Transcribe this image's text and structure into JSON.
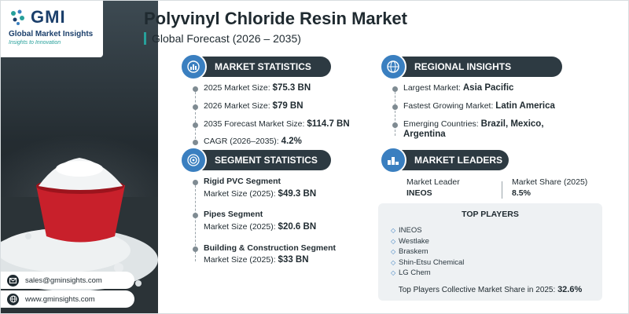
{
  "brand": {
    "logo_text": "GMI",
    "name": "Global Market Insights",
    "tagline": "Insights to Innovation"
  },
  "contact": {
    "email": "sales@gminsights.com",
    "website": "www.gminsights.com"
  },
  "header": {
    "title": "Polyvinyl Chloride Resin Market",
    "subtitle": "Global Forecast (2026 – 2035)"
  },
  "market_statistics": {
    "heading": "MARKET STATISTICS",
    "items": [
      {
        "label": "2025 Market Size: ",
        "value": "$75.3 BN"
      },
      {
        "label": "2026 Market Size: ",
        "value": "$79 BN"
      },
      {
        "label": "2035 Forecast Market Size: ",
        "value": "$114.7 BN"
      },
      {
        "label": "CAGR (2026–2035): ",
        "value": "4.2%"
      }
    ]
  },
  "regional_insights": {
    "heading": "REGIONAL INSIGHTS",
    "items": [
      {
        "label": "Largest Market: ",
        "value": "Asia Pacific"
      },
      {
        "label": "Fastest Growing Market: ",
        "value": "Latin America"
      },
      {
        "label": "Emerging Countries: ",
        "value": "Brazil, Mexico,",
        "value2": "Argentina"
      }
    ]
  },
  "segment_statistics": {
    "heading": "SEGMENT STATISTICS",
    "items": [
      {
        "name": "Rigid PVC Segment",
        "label": "Market Size (2025): ",
        "value": "$49.3 BN"
      },
      {
        "name": "Pipes Segment",
        "label": "Market Size (2025): ",
        "value": "$20.6 BN"
      },
      {
        "name": "Building & Construction Segment",
        "label": "Market Size (2025): ",
        "value": "$33 BN"
      }
    ]
  },
  "market_leaders": {
    "heading": "MARKET LEADERS",
    "leader_label": "Market Leader",
    "leader_value": "INEOS",
    "share_label": "Market Share (2025)",
    "share_value": "8.5%"
  },
  "top_players": {
    "title": "TOP PLAYERS",
    "players": [
      "INEOS",
      "Westlake",
      "Braskem",
      "Shin-Etsu Chemical",
      "LG Chem"
    ],
    "footer_label": "Top Players Collective Market Share in 2025: ",
    "footer_value": "32.6%"
  },
  "icons": {
    "market_statistics": "globe-chart-icon",
    "regional_insights": "globe-icon",
    "segment_statistics": "target-icon",
    "market_leaders": "podium-icon",
    "email": "envelope-icon",
    "website": "globe-icon"
  },
  "colors": {
    "header_pill": "#2d3a42",
    "accent_blue": "#3a7fc0",
    "accent_teal": "#27a09b",
    "logo_navy": "#1b3f6b"
  }
}
